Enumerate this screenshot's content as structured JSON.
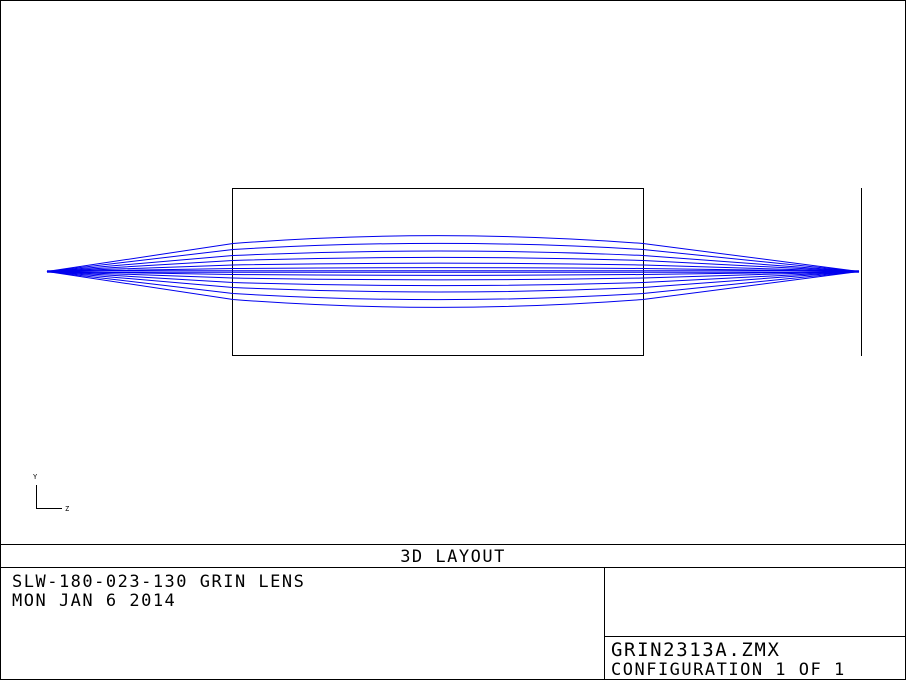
{
  "plot": {
    "title": "3D LAYOUT",
    "colors": {
      "rays": "#0000ee",
      "frame": "#000000",
      "background": "#ffffff"
    },
    "axes": {
      "vertical_label": "Y",
      "horizontal_label": "Z"
    },
    "elements": [
      {
        "name": "object-point",
        "kind": "point source"
      },
      {
        "name": "grin-lens",
        "kind": "rectangular lens block"
      },
      {
        "name": "image-plane",
        "kind": "line"
      }
    ],
    "ray_count": 14
  },
  "title_block": {
    "lens_name": "SLW-180-023-130 GRIN LENS",
    "date": "MON JAN 6 2014",
    "file_name": "GRIN2313A.ZMX",
    "configuration": "CONFIGURATION 1 OF 1"
  }
}
